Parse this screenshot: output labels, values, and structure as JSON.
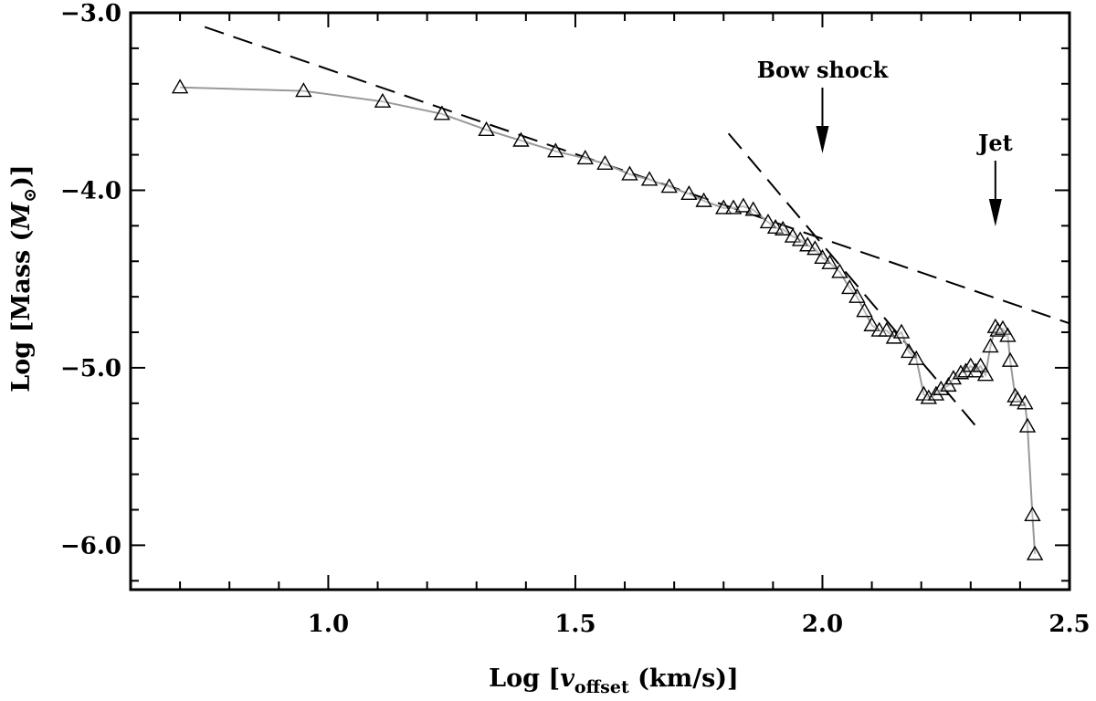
{
  "chart_data": {
    "type": "scatter",
    "xlabel": {
      "prefix": "Log [",
      "var": "v",
      "sub": "offset",
      "suffix": " (km/s)]"
    },
    "ylabel": {
      "prefix": "Log [Mass (",
      "var": "M",
      "sub": "⊙",
      "suffix": ")]"
    },
    "xlim": [
      0.6,
      2.5
    ],
    "ylim": [
      -6.25,
      -3.0
    ],
    "xticks": [
      1.0,
      1.5,
      2.0,
      2.5
    ],
    "xtick_labels": [
      "1.0",
      "1.5",
      "2.0",
      "2.5"
    ],
    "yticks": [
      -6.0,
      -5.0,
      -4.0,
      -3.0
    ],
    "ytick_labels": [
      "−6.0",
      "−5.0",
      "−4.0",
      "−3.0"
    ],
    "grid": false,
    "colors": {
      "line": "#999999",
      "marker_edge": "#000000",
      "fit": "#000000"
    },
    "series": [
      {
        "x": [
          0.7,
          0.95,
          1.11,
          1.23,
          1.32,
          1.39,
          1.46,
          1.52,
          1.56,
          1.61,
          1.65,
          1.69,
          1.73,
          1.76,
          1.8,
          1.82,
          1.84,
          1.86,
          1.89,
          1.905,
          1.92,
          1.94,
          1.955,
          1.97,
          1.985,
          2.0,
          2.015,
          2.035,
          2.055,
          2.07,
          2.085,
          2.1,
          2.115,
          2.13,
          2.145,
          2.16,
          2.175,
          2.19,
          2.205,
          2.215,
          2.23,
          2.24,
          2.255,
          2.265,
          2.28,
          2.29,
          2.3,
          2.31,
          2.32,
          2.33,
          2.34,
          2.35,
          2.355,
          2.365,
          2.375,
          2.38,
          2.39,
          2.395,
          2.41,
          2.415,
          2.425,
          2.43
        ],
        "y": [
          -3.42,
          -3.44,
          -3.5,
          -3.57,
          -3.66,
          -3.72,
          -3.78,
          -3.82,
          -3.85,
          -3.91,
          -3.94,
          -3.98,
          -4.02,
          -4.06,
          -4.1,
          -4.1,
          -4.09,
          -4.11,
          -4.18,
          -4.21,
          -4.22,
          -4.26,
          -4.28,
          -4.31,
          -4.33,
          -4.38,
          -4.41,
          -4.46,
          -4.55,
          -4.6,
          -4.68,
          -4.76,
          -4.79,
          -4.79,
          -4.83,
          -4.8,
          -4.91,
          -4.95,
          -5.15,
          -5.17,
          -5.15,
          -5.12,
          -5.1,
          -5.06,
          -5.03,
          -5.02,
          -4.99,
          -5.02,
          -4.99,
          -5.04,
          -4.88,
          -4.77,
          -4.79,
          -4.78,
          -4.82,
          -4.96,
          -5.16,
          -5.18,
          -5.2,
          -5.33,
          -5.83,
          -6.05
        ]
      }
    ],
    "fits": [
      {
        "x": [
          0.75,
          2.5
        ],
        "y": [
          -3.08,
          -4.75
        ]
      },
      {
        "x": [
          1.81,
          2.32
        ],
        "y": [
          -3.68,
          -5.36
        ]
      }
    ],
    "annotations": [
      {
        "text": "Bow shock",
        "x": 2.0
      },
      {
        "text": "Jet",
        "x": 2.35
      }
    ]
  }
}
